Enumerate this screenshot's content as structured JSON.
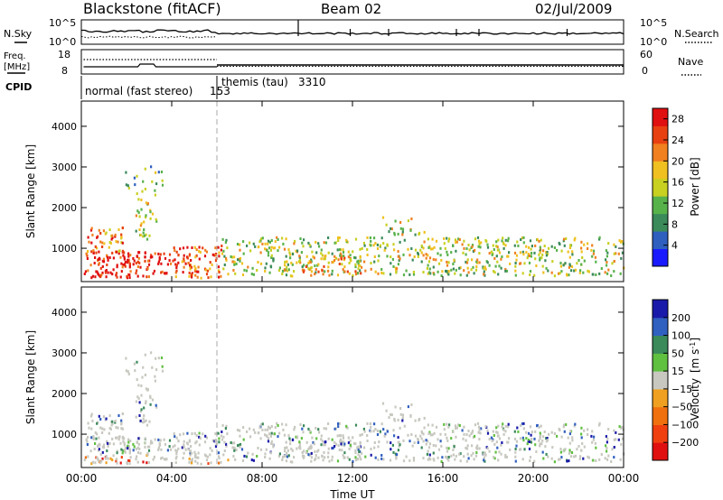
{
  "header": {
    "station": "Blackstone (fitACF)",
    "beam": "Beam 02",
    "date": "02/Jul/2009"
  },
  "top_panel": {
    "left_label": "N.Sky",
    "right_label": "N.Search",
    "ticks_left": [
      "10^5",
      "10^0"
    ],
    "ticks_right": [
      "10^5",
      "10^0"
    ]
  },
  "freq_panel": {
    "left_label_line1": "Freq.",
    "left_label_line2": "[MHz]",
    "right_label": "Nave",
    "ticks_left": [
      "18",
      "8"
    ],
    "ticks_right": [
      "60",
      "0"
    ]
  },
  "cpid_panel": {
    "label": "CPID",
    "segments": [
      {
        "name": "normal (fast stereo)",
        "id": "153",
        "start_hour": 0
      },
      {
        "name": "themis (tau)",
        "id": "3310",
        "start_hour": 6
      }
    ]
  },
  "colors": {
    "power_scale": [
      "#1a1aff",
      "#2e5fbf",
      "#3a8a5a",
      "#58b24a",
      "#c8d020",
      "#f0c020",
      "#f08020",
      "#e84010",
      "#e01010"
    ],
    "velocity_scale": [
      "#e01010",
      "#f04010",
      "#f07010",
      "#f0a020",
      "#c8c8c0",
      "#60c040",
      "#3a8a5a",
      "#3060c0",
      "#1a1aaa"
    ]
  },
  "chart_data": [
    {
      "type": "heatmap",
      "title": "",
      "parameter": "Power",
      "xlabel": "Time UT",
      "ylabel": "Slant Range [km]",
      "x_ticks": [
        "00:00",
        "04:00",
        "08:00",
        "12:00",
        "16:00",
        "20:00",
        "00:00"
      ],
      "xlim_hours": [
        0,
        24
      ],
      "y_ticks": [
        1000,
        2000,
        3000,
        4000
      ],
      "ylim": [
        180,
        4620
      ],
      "colorbar": {
        "label": "Power [dB]",
        "ticks": [
          4,
          8,
          12,
          16,
          20,
          24,
          28
        ],
        "range": [
          0,
          30
        ]
      }
    },
    {
      "type": "heatmap",
      "title": "",
      "parameter": "Velocity",
      "xlabel": "Time UT",
      "ylabel": "Slant Range [km]",
      "x_ticks": [
        "00:00",
        "04:00",
        "08:00",
        "12:00",
        "16:00",
        "20:00",
        "00:00"
      ],
      "xlim_hours": [
        0,
        24
      ],
      "y_ticks": [
        1000,
        2000,
        3000,
        4000
      ],
      "ylim": [
        180,
        4620
      ],
      "colorbar": {
        "label": "Velocity",
        "units": "[m s",
        "units_exp": "-1",
        "units_close": "]",
        "ticks": [
          200,
          100,
          50,
          15,
          -15,
          -50,
          -100,
          -200
        ]
      }
    }
  ]
}
